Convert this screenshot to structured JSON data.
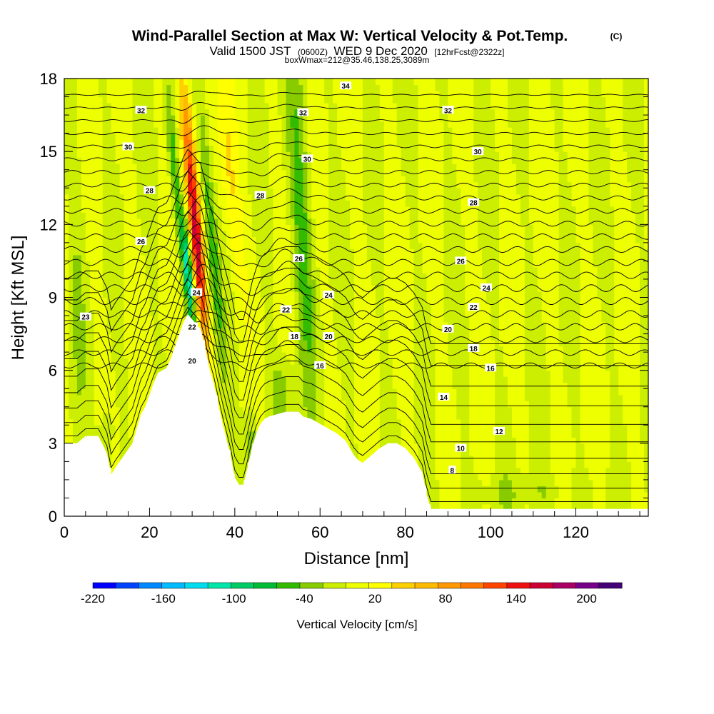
{
  "title": {
    "main": "Wind-Parallel Section at Max W: Vertical Velocity & Pot.Temp.",
    "mark": "(C)",
    "valid_prefix": "Valid 1500 JST",
    "valid_utc": "(0600Z)",
    "valid_date": "WED 9 Dec 2020",
    "forecast": "[12hrFcst@2322z]",
    "box": "boxWmax=212@35.46,138.25,3089m"
  },
  "chart_data": {
    "type": "heatmap",
    "xlabel": "Distance [nm]",
    "ylabel": "Height [Kft MSL]",
    "xlim": [
      0,
      137
    ],
    "ylim": [
      0,
      18
    ],
    "xticks": [
      "0",
      "20",
      "40",
      "60",
      "80",
      "100",
      "120"
    ],
    "yticks": [
      "0",
      "3",
      "6",
      "9",
      "12",
      "15",
      "18"
    ],
    "colorbar": {
      "title": "Vertical Velocity [cm/s]",
      "tick_labels": [
        "-220",
        "-160",
        "-100",
        "-40",
        "20",
        "80",
        "140",
        "200"
      ],
      "min": -220,
      "max": 230,
      "step": 20,
      "colors": [
        "#0000ff",
        "#0044ff",
        "#0088ff",
        "#00bbff",
        "#00ddee",
        "#00e6aa",
        "#00cc66",
        "#00bb33",
        "#33bb00",
        "#88cc00",
        "#ccee00",
        "#eeff00",
        "#ffff00",
        "#ffd000",
        "#ffbb00",
        "#ff9900",
        "#ff7700",
        "#ff4400",
        "#ee1111",
        "#cc0033",
        "#aa0066",
        "#770088",
        "#440077"
      ]
    },
    "terrain_kft": [
      [
        0,
        3
      ],
      [
        3,
        3
      ],
      [
        5,
        3.3
      ],
      [
        8,
        3.3
      ],
      [
        10,
        2.6
      ],
      [
        11,
        1.7
      ],
      [
        12,
        2
      ],
      [
        14,
        2.5
      ],
      [
        16,
        3
      ],
      [
        17,
        3.6
      ],
      [
        18,
        4.2
      ],
      [
        19,
        4.5
      ],
      [
        20,
        5
      ],
      [
        21,
        5.5
      ],
      [
        22,
        5.9
      ],
      [
        24,
        6.1
      ],
      [
        25,
        6.5
      ],
      [
        26,
        7
      ],
      [
        27,
        7.5
      ],
      [
        28,
        8
      ],
      [
        29,
        8.3
      ],
      [
        30,
        8.1
      ],
      [
        31,
        7.9
      ],
      [
        32,
        7.7
      ],
      [
        33,
        7
      ],
      [
        34,
        6.1
      ],
      [
        35,
        5.5
      ],
      [
        36,
        4.7
      ],
      [
        37,
        3.9
      ],
      [
        38,
        3.2
      ],
      [
        39,
        2.5
      ],
      [
        40,
        1.6
      ],
      [
        41,
        1.3
      ],
      [
        42,
        1.3
      ],
      [
        43,
        2
      ],
      [
        44,
        2.8
      ],
      [
        45,
        3.4
      ],
      [
        46,
        3.8
      ],
      [
        47,
        4
      ],
      [
        48,
        4.1
      ],
      [
        50,
        4.2
      ],
      [
        52,
        4.3
      ],
      [
        55,
        4.3
      ],
      [
        56,
        4.1
      ],
      [
        58,
        4
      ],
      [
        60,
        3.8
      ],
      [
        62,
        3.6
      ],
      [
        64,
        3.4
      ],
      [
        66,
        3.1
      ],
      [
        67,
        2.8
      ],
      [
        68,
        2.5
      ],
      [
        69,
        2.3
      ],
      [
        70,
        2.2
      ],
      [
        72,
        2.5
      ],
      [
        74,
        2.8
      ],
      [
        76,
        3
      ],
      [
        78,
        3
      ],
      [
        80,
        2.8
      ],
      [
        82,
        2.4
      ],
      [
        84,
        1.8
      ],
      [
        85,
        0.9
      ],
      [
        86,
        0.3
      ],
      [
        90,
        0.3
      ],
      [
        110,
        0.3
      ],
      [
        137,
        0.3
      ]
    ],
    "theta_labels": [
      {
        "value": "34",
        "x": 66,
        "y": 17.7
      },
      {
        "value": "32",
        "x": 18,
        "y": 16.7
      },
      {
        "value": "32",
        "x": 56,
        "y": 16.6
      },
      {
        "value": "32",
        "x": 90,
        "y": 16.7
      },
      {
        "value": "30",
        "x": 15,
        "y": 15.2
      },
      {
        "value": "30",
        "x": 57,
        "y": 14.7
      },
      {
        "value": "30",
        "x": 97,
        "y": 15
      },
      {
        "value": "28",
        "x": 20,
        "y": 13.4
      },
      {
        "value": "28",
        "x": 46,
        "y": 13.2
      },
      {
        "value": "28",
        "x": 96,
        "y": 12.9
      },
      {
        "value": "26",
        "x": 18,
        "y": 11.3
      },
      {
        "value": "26",
        "x": 55,
        "y": 10.6
      },
      {
        "value": "26",
        "x": 93,
        "y": 10.5
      },
      {
        "value": "24",
        "x": 31,
        "y": 9.2
      },
      {
        "value": "24",
        "x": 62,
        "y": 9.1
      },
      {
        "value": "24",
        "x": 99,
        "y": 9.4
      },
      {
        "value": "23",
        "x": 5,
        "y": 8.2
      },
      {
        "value": "22",
        "x": 30,
        "y": 7.8
      },
      {
        "value": "22",
        "x": 52,
        "y": 8.5
      },
      {
        "value": "22",
        "x": 96,
        "y": 8.6
      },
      {
        "value": "20",
        "x": 30,
        "y": 6.4
      },
      {
        "value": "20",
        "x": 62,
        "y": 7.4
      },
      {
        "value": "20",
        "x": 90,
        "y": 7.7
      },
      {
        "value": "18",
        "x": 54,
        "y": 7.4
      },
      {
        "value": "18",
        "x": 96,
        "y": 6.9
      },
      {
        "value": "16",
        "x": 60,
        "y": 6.2
      },
      {
        "value": "16",
        "x": 100,
        "y": 6.1
      },
      {
        "value": "14",
        "x": 89,
        "y": 4.9
      },
      {
        "value": "12",
        "x": 102,
        "y": 3.5
      },
      {
        "value": "10",
        "x": 93,
        "y": 2.8
      },
      {
        "value": "8",
        "x": 91,
        "y": 1.9
      }
    ]
  }
}
